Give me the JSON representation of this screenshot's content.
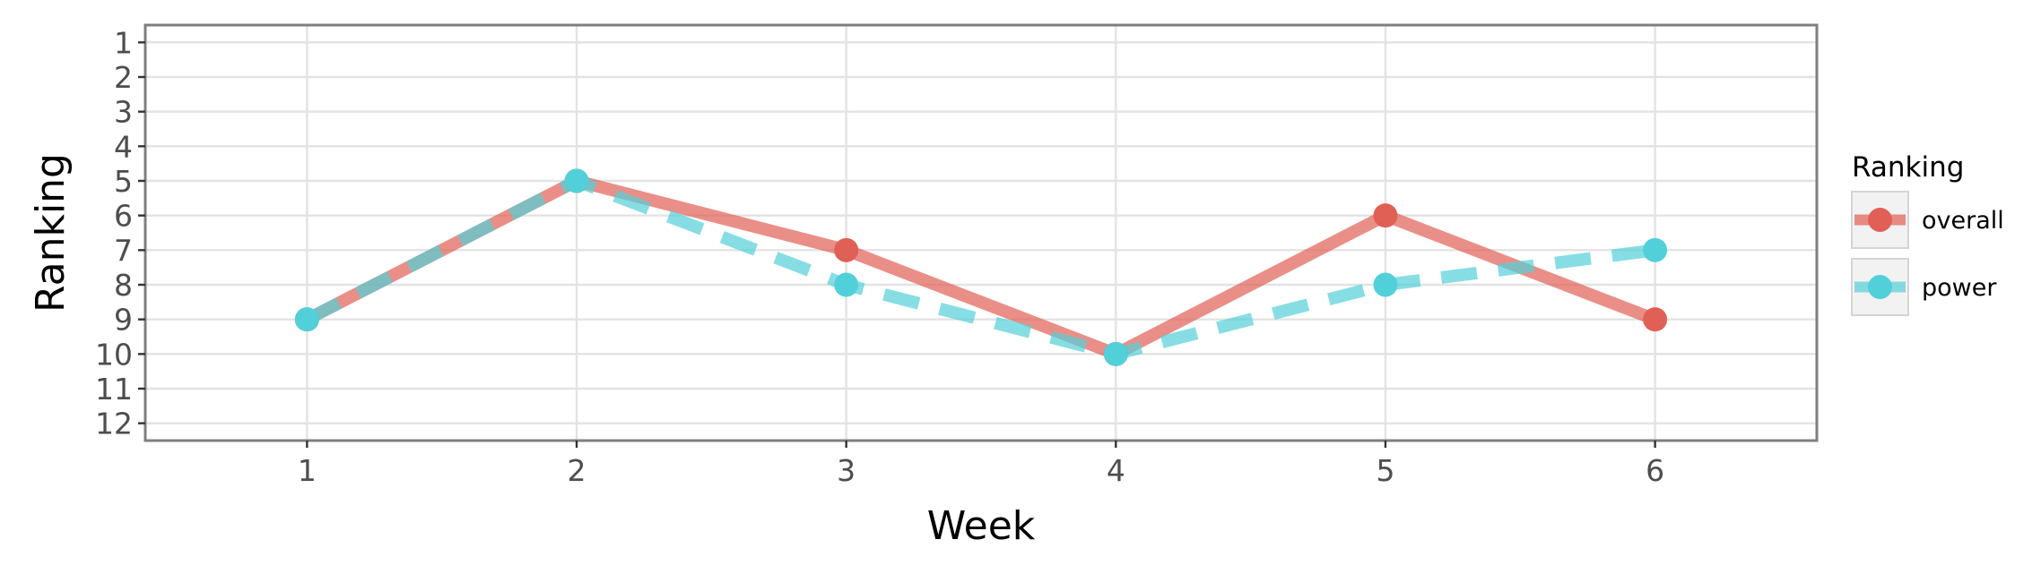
{
  "chart_data": {
    "type": "line",
    "xlabel": "Week",
    "ylabel": "Ranking",
    "x": [
      1,
      2,
      3,
      4,
      5,
      6
    ],
    "xlim": [
      0.4,
      6.6
    ],
    "ylim": [
      12.5,
      0.5
    ],
    "y_reversed": true,
    "yticks": [
      1,
      2,
      3,
      4,
      5,
      6,
      7,
      8,
      9,
      10,
      11,
      12
    ],
    "grid": true,
    "legend": {
      "title": "Ranking",
      "placement": "right"
    },
    "series": [
      {
        "name": "overall",
        "values": [
          9,
          5,
          7,
          10,
          6,
          9
        ],
        "color": "#e06055",
        "line_style": "solid"
      },
      {
        "name": "power",
        "values": [
          9,
          5,
          8,
          10,
          8,
          7
        ],
        "color": "#52d0d9",
        "line_style": "dashed"
      }
    ]
  }
}
